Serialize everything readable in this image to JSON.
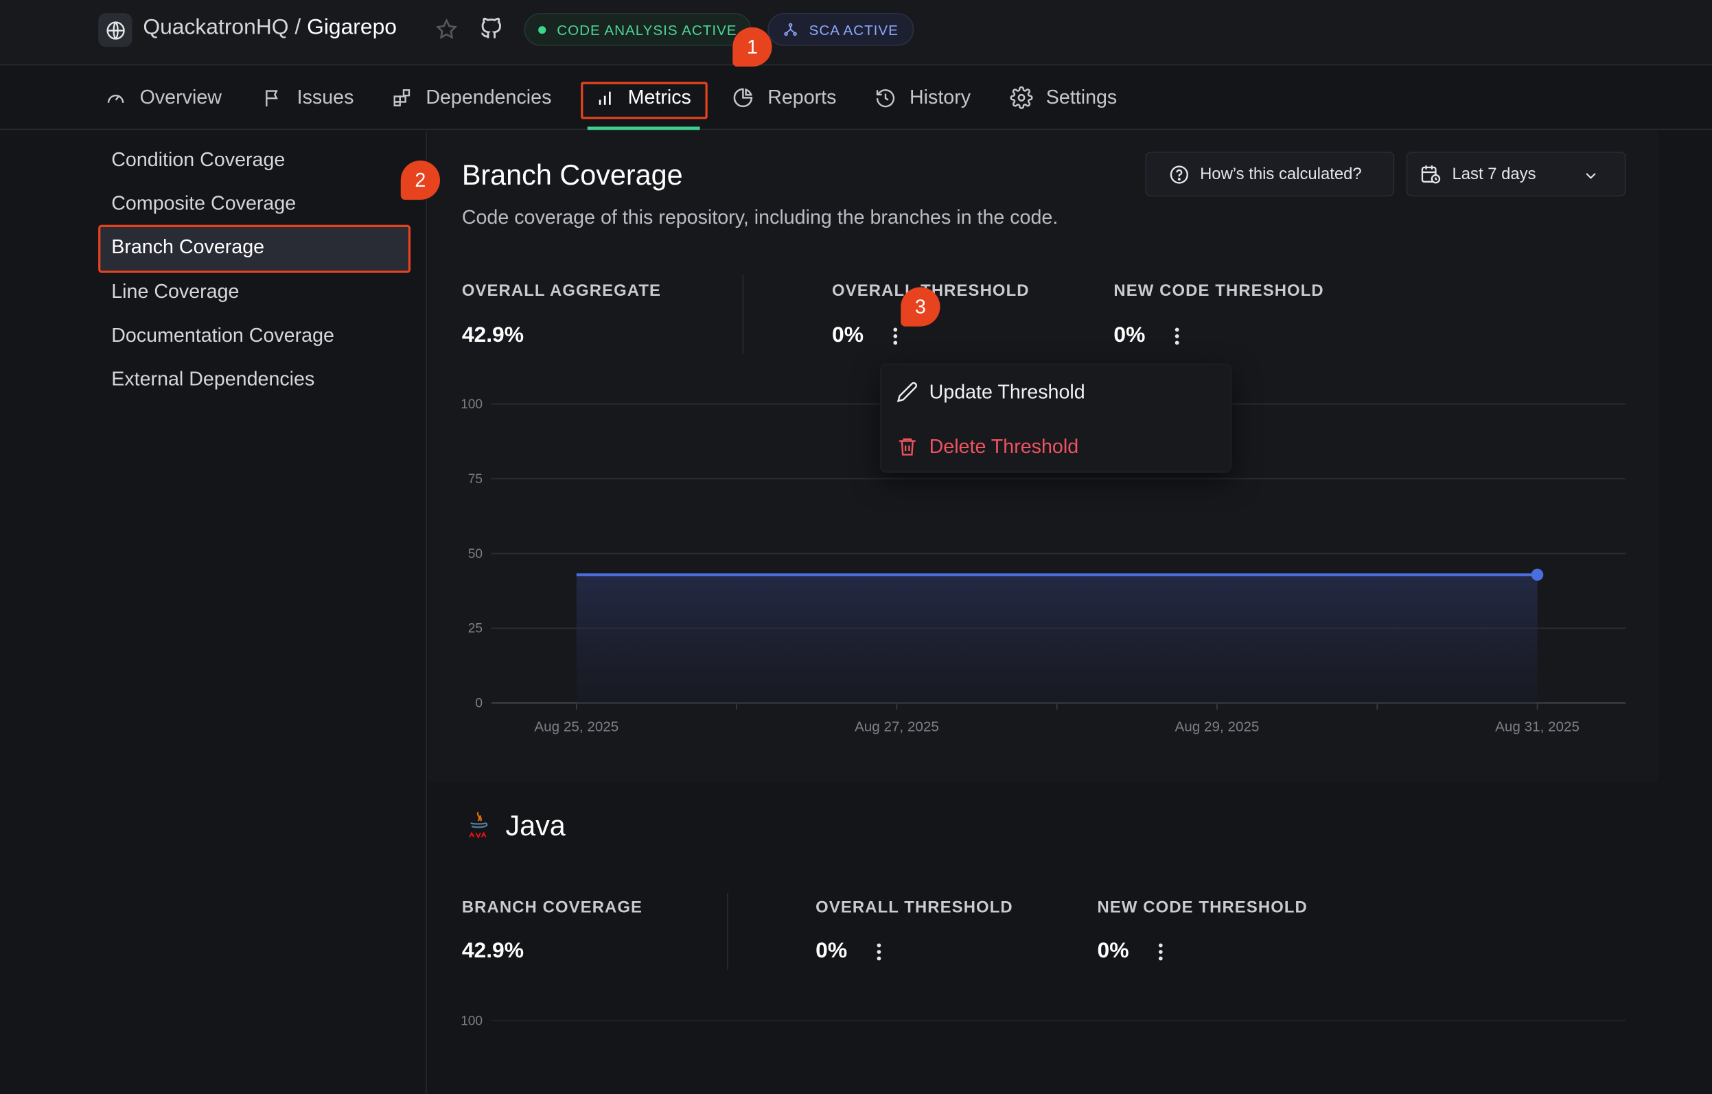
{
  "header": {
    "org": "QuackatronHQ",
    "separator": "/",
    "repo": "Gigarepo",
    "badges": [
      {
        "label": "CODE ANALYSIS ACTIVE",
        "color": "#4fd39a"
      },
      {
        "label": "SCA ACTIVE",
        "color": "#8fa6ff"
      }
    ]
  },
  "tabs": [
    {
      "label": "Overview",
      "icon": "gauge-icon"
    },
    {
      "label": "Issues",
      "icon": "flag-icon"
    },
    {
      "label": "Dependencies",
      "icon": "blocks-icon"
    },
    {
      "label": "Metrics",
      "icon": "bar-chart-icon",
      "active": true
    },
    {
      "label": "Reports",
      "icon": "pie-chart-icon"
    },
    {
      "label": "History",
      "icon": "history-icon"
    },
    {
      "label": "Settings",
      "icon": "gear-icon"
    }
  ],
  "sidebar": {
    "items": [
      {
        "label": "Condition Coverage"
      },
      {
        "label": "Composite Coverage"
      },
      {
        "label": "Branch Coverage",
        "active": true
      },
      {
        "label": "Line Coverage"
      },
      {
        "label": "Documentation Coverage"
      },
      {
        "label": "External Dependencies"
      }
    ]
  },
  "markers": [
    "1",
    "2",
    "3"
  ],
  "main": {
    "title": "Branch Coverage",
    "description": "Code coverage of this repository, including the branches in the code.",
    "calc_button": "How’s this calculated?",
    "range_select": "Last 7 days",
    "stats": [
      {
        "label": "OVERALL AGGREGATE",
        "value": "42.9%"
      },
      {
        "label": "OVERALL THRESHOLD",
        "value": "0%"
      },
      {
        "label": "NEW CODE THRESHOLD",
        "value": "0%"
      }
    ],
    "menu": {
      "update": "Update Threshold",
      "delete": "Delete Threshold"
    }
  },
  "chart_data": [
    {
      "type": "area",
      "title": "",
      "xlabel": "",
      "ylabel": "",
      "ylim": [
        0,
        100
      ],
      "yticks": [
        "0",
        "25",
        "50",
        "75",
        "100"
      ],
      "x_tick_labels": [
        "Aug 25, 2025",
        "Aug 27, 2025",
        "Aug 29, 2025",
        "Aug 31, 2025"
      ],
      "x": [
        "Aug 25, 2025",
        "Aug 31, 2025"
      ],
      "y": [
        42.9,
        42.9
      ],
      "grid": true,
      "color": "#4a6ee0"
    }
  ],
  "java": {
    "title": "Java",
    "stats": [
      {
        "label": "BRANCH COVERAGE",
        "value": "42.9%"
      },
      {
        "label": "OVERALL THRESHOLD",
        "value": "0%"
      },
      {
        "label": "NEW CODE THRESHOLD",
        "value": "0%"
      }
    ],
    "chart_first_tick": "100"
  }
}
